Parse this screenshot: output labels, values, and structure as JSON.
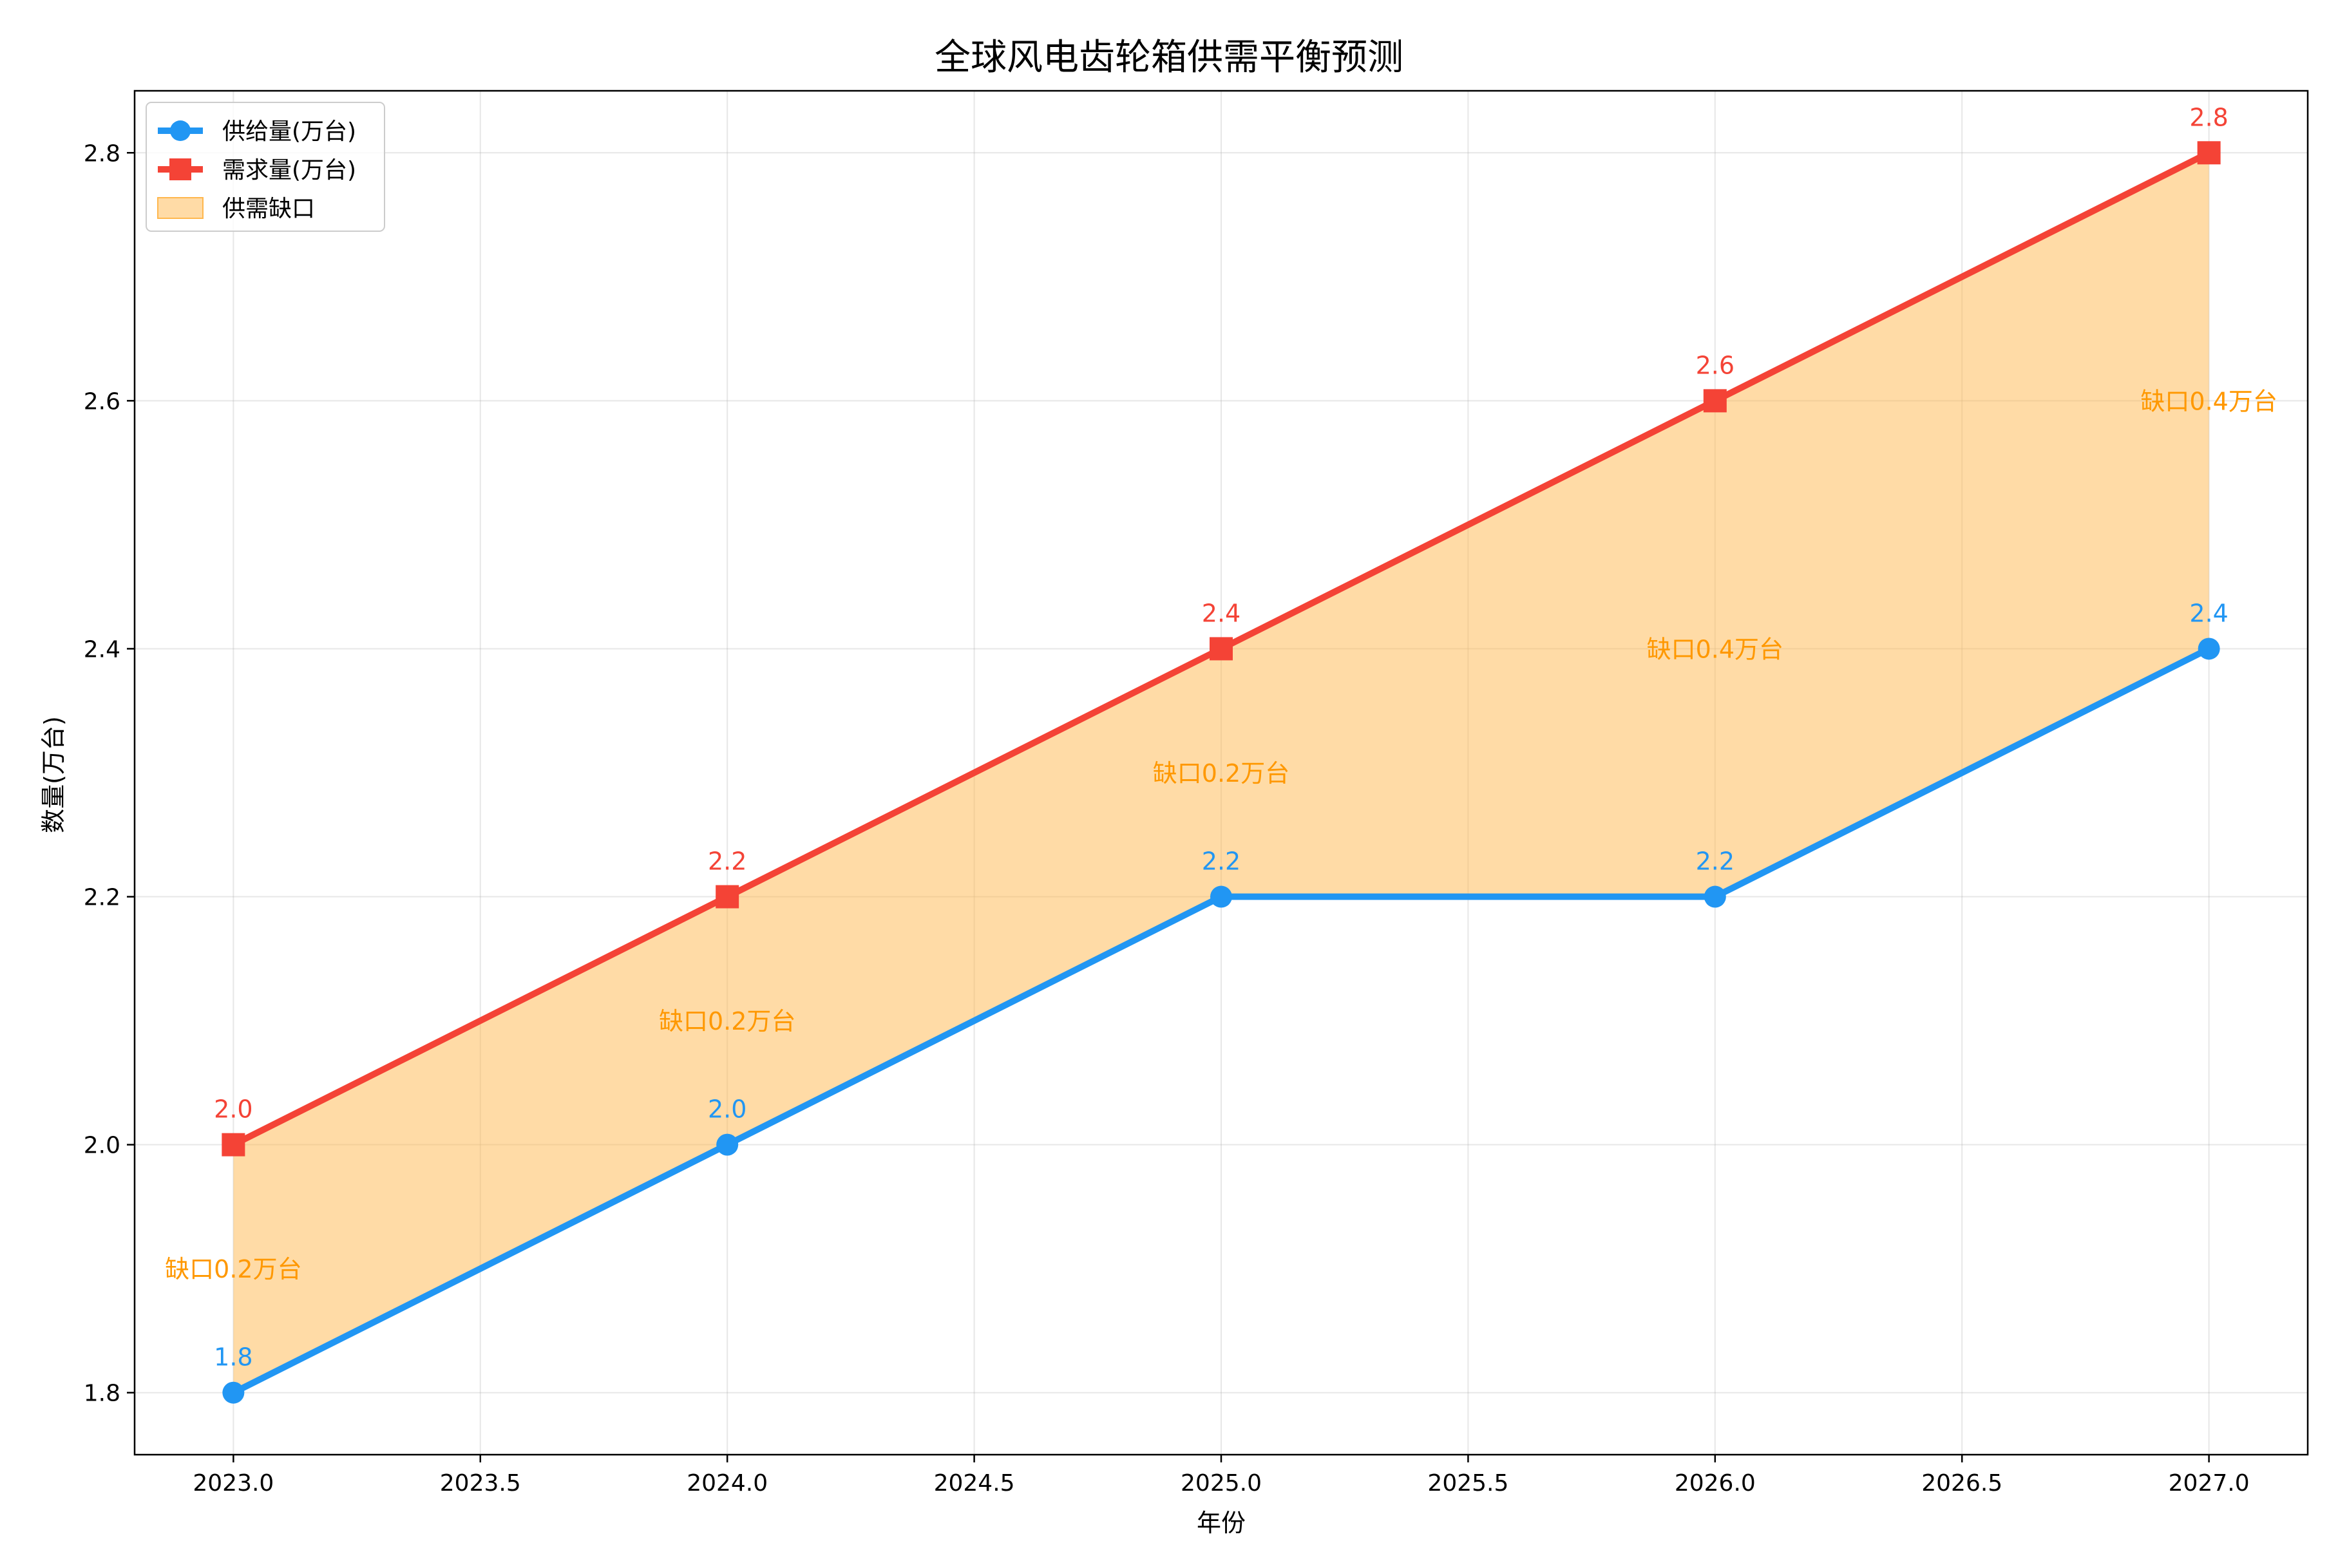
{
  "chart_data": {
    "type": "line",
    "title": "全球风电齿轮箱供需平衡预测",
    "xlabel": "年份",
    "ylabel": "数量(万台)",
    "x": [
      2023,
      2024,
      2025,
      2026,
      2027
    ],
    "xlim": [
      2022.8,
      2027.2
    ],
    "ylim": [
      1.75,
      2.85
    ],
    "xticks": [
      "2023.0",
      "2023.5",
      "2024.0",
      "2024.5",
      "2025.0",
      "2025.5",
      "2026.0",
      "2026.5",
      "2027.0"
    ],
    "xtick_values": [
      2023.0,
      2023.5,
      2024.0,
      2024.5,
      2025.0,
      2025.5,
      2026.0,
      2026.5,
      2027.0
    ],
    "yticks": [
      "1.8",
      "2.0",
      "2.2",
      "2.4",
      "2.6",
      "2.8"
    ],
    "ytick_values": [
      1.8,
      2.0,
      2.2,
      2.4,
      2.6,
      2.8
    ],
    "grid": true,
    "legend_position": "top-left",
    "series": [
      {
        "name": "供给量(万台)",
        "values": [
          1.8,
          2.0,
          2.2,
          2.2,
          2.4
        ],
        "labels": [
          "1.8",
          "2.0",
          "2.2",
          "2.2",
          "2.4"
        ],
        "color": "#2196F3",
        "marker": "circle"
      },
      {
        "name": "需求量(万台)",
        "values": [
          2.0,
          2.2,
          2.4,
          2.6,
          2.8
        ],
        "labels": [
          "2.0",
          "2.2",
          "2.4",
          "2.6",
          "2.8"
        ],
        "color": "#F44336",
        "marker": "square"
      }
    ],
    "fill": {
      "name": "供需缺口",
      "color": "#FFB74D"
    },
    "gap_annotations": [
      {
        "x": 2023,
        "y": 1.9,
        "text": "缺口0.2万台"
      },
      {
        "x": 2024,
        "y": 2.1,
        "text": "缺口0.2万台"
      },
      {
        "x": 2025,
        "y": 2.3,
        "text": "缺口0.2万台"
      },
      {
        "x": 2026,
        "y": 2.4,
        "text": "缺口0.4万台"
      },
      {
        "x": 2027,
        "y": 2.6,
        "text": "缺口0.4万台"
      }
    ],
    "annotation_color": "#FF9800"
  }
}
